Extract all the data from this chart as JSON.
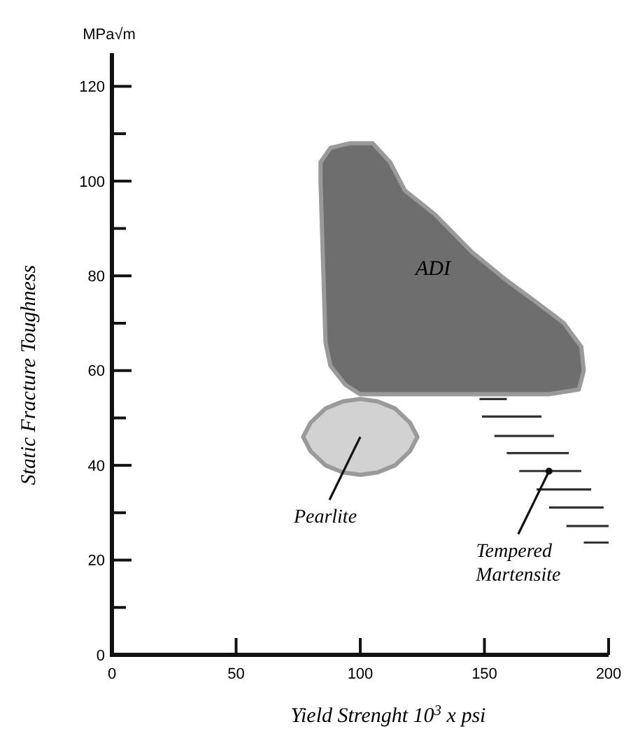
{
  "chart_data": {
    "type": "area",
    "xlabel": "Yield Strenght 10$^{3}$ x psi",
    "ylabel": "Static Fracture Toughness",
    "xlim": [
      0,
      200
    ],
    "ylim": [
      0,
      127
    ],
    "xticks": [
      0,
      50,
      100,
      150,
      200
    ],
    "yticks": [
      0,
      {
        "value": 10,
        "label": null
      },
      20,
      {
        "value": 30,
        "label": null
      },
      40,
      {
        "value": 50,
        "label": null
      },
      60,
      {
        "value": 70,
        "label": null
      },
      80,
      {
        "value": 90,
        "label": null
      },
      100,
      {
        "value": 110,
        "label": null
      },
      120
    ],
    "grid": false,
    "series": [
      {
        "name": "ADI",
        "color": "#6e6e6e",
        "x": [
          84,
          88,
          96,
          105,
          112,
          118,
          130,
          145,
          159,
          172,
          182,
          189,
          190,
          188,
          176,
          100,
          94,
          88,
          86,
          84
        ],
        "values": [
          104,
          107,
          108,
          108,
          104,
          98,
          93,
          85,
          79,
          74,
          70,
          65,
          60,
          56,
          55,
          55,
          57,
          61,
          66,
          100
        ]
      },
      {
        "name": "Pearlite",
        "color": "#d2d2d2",
        "x": [
          77,
          80,
          86,
          93,
          100,
          107,
          114,
          120,
          123,
          120,
          114,
          107,
          100,
          93,
          86,
          80
        ],
        "values": [
          46,
          49,
          52,
          53.5,
          54,
          53.5,
          52,
          49,
          46,
          43,
          40,
          38.5,
          38,
          38.5,
          40,
          43
        ]
      },
      {
        "name": "Tempered\nMartensite",
        "type": "line",
        "color": "#333333",
        "x": [
          148,
          159,
          null,
          149,
          173,
          null,
          154,
          178,
          null,
          159,
          184,
          null,
          164,
          189,
          null,
          171,
          193,
          null,
          176,
          198,
          null,
          183,
          200,
          null,
          190,
          200
        ],
        "values": [
          54,
          54,
          null,
          50.3,
          50.3,
          null,
          46.2,
          46.2,
          null,
          42.6,
          42.6,
          null,
          38.8,
          38.8,
          null,
          34.9,
          34.9,
          null,
          31.1,
          31.1,
          null,
          27.2,
          27.2,
          null,
          23.7,
          23.7
        ]
      }
    ],
    "annotations": [
      "MPa√m"
    ]
  }
}
